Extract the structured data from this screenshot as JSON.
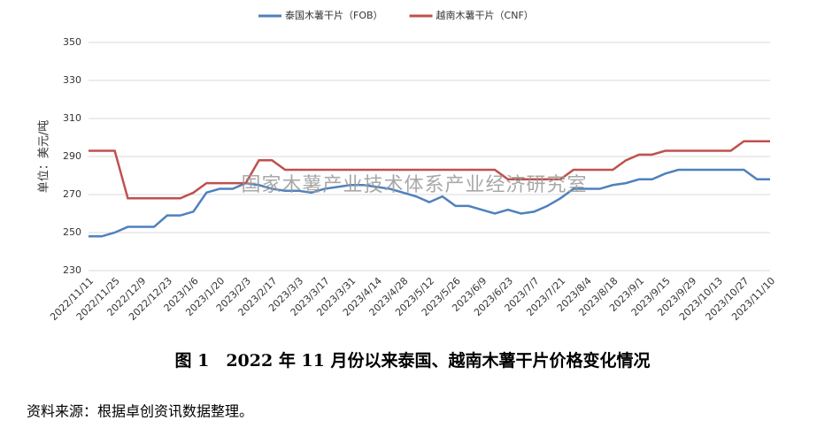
{
  "chart_data": {
    "type": "line",
    "y_label": "单位：美元/吨",
    "watermark": "国家木薯产业技术体系产业经济研究室",
    "caption": "图 1　2022 年 11 月份以来泰国、越南木薯干片价格变化情况",
    "source": "资料来源：根据卓创资讯数据整理。",
    "categories": [
      "2022/11/11",
      null,
      "2022/11/25",
      null,
      "2022/12/9",
      null,
      "2022/12/23",
      null,
      "2023/1/6",
      null,
      "2023/1/20",
      null,
      "2023/2/3",
      null,
      "2023/2/17",
      null,
      "2023/3/3",
      null,
      "2023/3/17",
      null,
      "2023/3/31",
      null,
      "2023/4/14",
      null,
      "2023/4/28",
      null,
      "2023/5/12",
      null,
      "2023/5/26",
      null,
      "2023/6/9",
      null,
      "2023/6/23",
      null,
      "2023/7/7",
      null,
      "2023/7/21",
      null,
      "2023/8/4",
      null,
      "2023/8/18",
      null,
      "2023/9/1",
      null,
      "2023/9/15",
      null,
      "2023/9/29",
      null,
      "2023/10/13",
      null,
      "2023/10/27",
      null,
      "2023/11/10"
    ],
    "series": [
      {
        "name": "泰国木薯干片（FOB）",
        "color": "#4f81bd",
        "values": [
          248,
          248,
          250,
          253,
          253,
          253,
          259,
          259,
          261,
          271,
          273,
          273,
          276,
          275,
          273,
          272,
          272,
          271,
          273,
          274,
          275,
          275,
          274,
          273,
          271,
          269,
          266,
          269,
          264,
          264,
          262,
          260,
          262,
          260,
          261,
          264,
          268,
          273,
          273,
          273,
          275,
          276,
          278,
          278,
          281,
          283,
          283,
          283,
          283,
          283,
          283,
          278,
          278
        ]
      },
      {
        "name": "越南木薯干片（CNF）",
        "color": "#c0504d",
        "values": [
          293,
          293,
          293,
          268,
          268,
          268,
          268,
          268,
          271,
          276,
          276,
          276,
          276,
          288,
          288,
          283,
          283,
          283,
          283,
          283,
          283,
          283,
          283,
          283,
          283,
          283,
          283,
          283,
          283,
          283,
          283,
          283,
          278,
          278,
          278,
          278,
          278,
          283,
          283,
          283,
          283,
          288,
          291,
          291,
          293,
          293,
          293,
          293,
          293,
          293,
          298,
          298,
          298
        ]
      }
    ],
    "ylim": [
      230,
      350
    ],
    "yticks": [
      230,
      250,
      270,
      290,
      310,
      330,
      350
    ],
    "grid": true,
    "legend": "top"
  }
}
